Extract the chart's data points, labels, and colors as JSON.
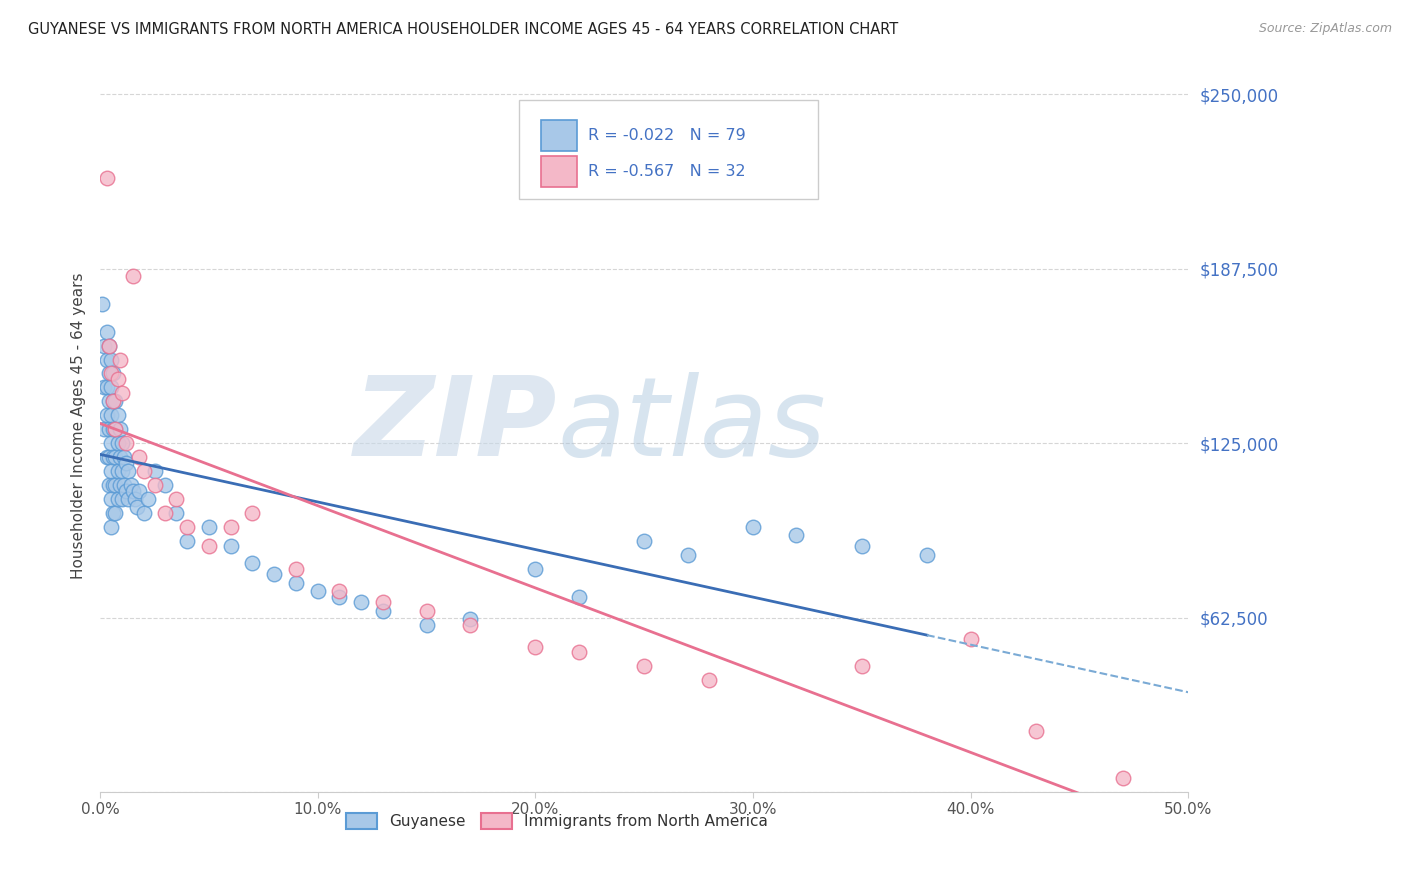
{
  "title": "GUYANESE VS IMMIGRANTS FROM NORTH AMERICA HOUSEHOLDER INCOME AGES 45 - 64 YEARS CORRELATION CHART",
  "source": "Source: ZipAtlas.com",
  "ylabel": "Householder Income Ages 45 - 64 years",
  "xlim": [
    0.0,
    0.5
  ],
  "ylim": [
    0,
    262500
  ],
  "yticks": [
    0,
    62500,
    125000,
    187500,
    250000
  ],
  "ytick_labels": [
    "",
    "$62,500",
    "$125,000",
    "$187,500",
    "$250,000"
  ],
  "xticks": [
    0.0,
    0.1,
    0.2,
    0.3,
    0.4,
    0.5
  ],
  "xtick_labels": [
    "0.0%",
    "10.0%",
    "20.0%",
    "30.0%",
    "40.0%",
    "50.0%"
  ],
  "blue_color": "#a8c8e8",
  "blue_edge": "#5b9bd5",
  "pink_color": "#f4b8c8",
  "pink_edge": "#e87090",
  "line_blue": "#3a6db5",
  "line_blue_dash": "#7aaad5",
  "line_pink": "#e87090",
  "R_blue": -0.022,
  "N_blue": 79,
  "R_pink": -0.567,
  "N_pink": 32,
  "watermark_zip": "ZIP",
  "watermark_atlas": "atlas",
  "legend_labels": [
    "Guyanese",
    "Immigrants from North America"
  ],
  "blue_x": [
    0.001,
    0.002,
    0.002,
    0.002,
    0.003,
    0.003,
    0.003,
    0.003,
    0.003,
    0.004,
    0.004,
    0.004,
    0.004,
    0.004,
    0.004,
    0.005,
    0.005,
    0.005,
    0.005,
    0.005,
    0.005,
    0.005,
    0.006,
    0.006,
    0.006,
    0.006,
    0.006,
    0.006,
    0.007,
    0.007,
    0.007,
    0.007,
    0.007,
    0.008,
    0.008,
    0.008,
    0.008,
    0.009,
    0.009,
    0.009,
    0.01,
    0.01,
    0.01,
    0.011,
    0.011,
    0.012,
    0.012,
    0.013,
    0.013,
    0.014,
    0.015,
    0.016,
    0.017,
    0.018,
    0.02,
    0.022,
    0.025,
    0.03,
    0.035,
    0.04,
    0.05,
    0.06,
    0.07,
    0.08,
    0.09,
    0.1,
    0.11,
    0.12,
    0.13,
    0.15,
    0.17,
    0.2,
    0.22,
    0.25,
    0.27,
    0.3,
    0.32,
    0.35,
    0.38
  ],
  "blue_y": [
    175000,
    160000,
    145000,
    130000,
    165000,
    155000,
    145000,
    135000,
    120000,
    160000,
    150000,
    140000,
    130000,
    120000,
    110000,
    155000,
    145000,
    135000,
    125000,
    115000,
    105000,
    95000,
    150000,
    140000,
    130000,
    120000,
    110000,
    100000,
    140000,
    130000,
    120000,
    110000,
    100000,
    135000,
    125000,
    115000,
    105000,
    130000,
    120000,
    110000,
    125000,
    115000,
    105000,
    120000,
    110000,
    118000,
    108000,
    115000,
    105000,
    110000,
    108000,
    105000,
    102000,
    108000,
    100000,
    105000,
    115000,
    110000,
    100000,
    90000,
    95000,
    88000,
    82000,
    78000,
    75000,
    72000,
    70000,
    68000,
    65000,
    60000,
    62000,
    80000,
    70000,
    90000,
    85000,
    95000,
    92000,
    88000,
    85000
  ],
  "pink_x": [
    0.003,
    0.004,
    0.005,
    0.006,
    0.007,
    0.008,
    0.009,
    0.01,
    0.012,
    0.015,
    0.018,
    0.02,
    0.025,
    0.03,
    0.035,
    0.04,
    0.05,
    0.06,
    0.07,
    0.09,
    0.11,
    0.13,
    0.15,
    0.17,
    0.2,
    0.22,
    0.25,
    0.28,
    0.35,
    0.4,
    0.43,
    0.47
  ],
  "pink_y": [
    220000,
    160000,
    150000,
    140000,
    130000,
    148000,
    155000,
    143000,
    125000,
    185000,
    120000,
    115000,
    110000,
    100000,
    105000,
    95000,
    88000,
    95000,
    100000,
    80000,
    72000,
    68000,
    65000,
    60000,
    52000,
    50000,
    45000,
    40000,
    45000,
    55000,
    22000,
    5000
  ]
}
